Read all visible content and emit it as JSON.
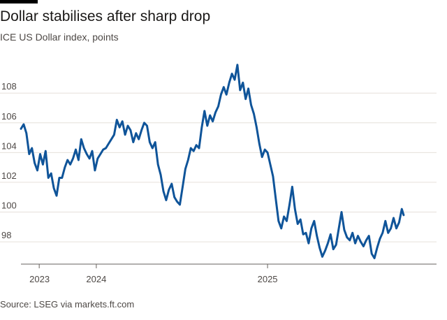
{
  "header": {
    "title": "Dollar stabilises after sharp drop",
    "subtitle": "ICE US Dollar index, points"
  },
  "footer": {
    "source": "Source: LSEG via markets.ft.com"
  },
  "colors": {
    "line": "#0f5499",
    "grid": "#e6e0da",
    "text": "#4d4845"
  },
  "chart_data": {
    "type": "line",
    "title": "Dollar stabilises after sharp drop",
    "subtitle": "ICE US Dollar index, points",
    "xlabel": "",
    "ylabel": "",
    "ylim": [
      96.5,
      110.5
    ],
    "yticks": [
      98,
      100,
      102,
      104,
      106,
      108
    ],
    "xlim": [
      2023.92,
      2025.74
    ],
    "xticks": [
      {
        "value": 2024.0,
        "label": "2023"
      },
      {
        "value": 2024.25,
        "label": "2024"
      },
      {
        "value": 2025.0,
        "label": "2025"
      }
    ],
    "grid": true,
    "legend": "none",
    "series": [
      {
        "name": "ICE US Dollar index",
        "points": [
          [
            2023.92,
            105.6
          ],
          [
            2023.932,
            105.9
          ],
          [
            2023.944,
            105.3
          ],
          [
            2023.956,
            103.9
          ],
          [
            2023.968,
            104.3
          ],
          [
            2023.98,
            103.3
          ],
          [
            2023.992,
            102.8
          ],
          [
            2024.004,
            103.9
          ],
          [
            2024.016,
            103.2
          ],
          [
            2024.028,
            104.1
          ],
          [
            2024.04,
            102.3
          ],
          [
            2024.052,
            102.6
          ],
          [
            2024.064,
            101.6
          ],
          [
            2024.076,
            101.1
          ],
          [
            2024.088,
            102.3
          ],
          [
            2024.1,
            102.3
          ],
          [
            2024.112,
            103.0
          ],
          [
            2024.124,
            103.5
          ],
          [
            2024.136,
            103.2
          ],
          [
            2024.148,
            103.6
          ],
          [
            2024.16,
            104.2
          ],
          [
            2024.172,
            103.5
          ],
          [
            2024.184,
            104.9
          ],
          [
            2024.196,
            104.3
          ],
          [
            2024.208,
            103.9
          ],
          [
            2024.22,
            103.6
          ],
          [
            2024.232,
            104.1
          ],
          [
            2024.244,
            102.8
          ],
          [
            2024.256,
            103.6
          ],
          [
            2024.268,
            103.9
          ],
          [
            2024.28,
            104.2
          ],
          [
            2024.292,
            104.3
          ],
          [
            2024.304,
            104.6
          ],
          [
            2024.316,
            104.9
          ],
          [
            2024.328,
            105.2
          ],
          [
            2024.34,
            106.2
          ],
          [
            2024.352,
            105.7
          ],
          [
            2024.364,
            106.1
          ],
          [
            2024.376,
            105.2
          ],
          [
            2024.388,
            105.8
          ],
          [
            2024.4,
            105.5
          ],
          [
            2024.412,
            104.7
          ],
          [
            2024.424,
            105.3
          ],
          [
            2024.436,
            104.9
          ],
          [
            2024.448,
            105.5
          ],
          [
            2024.46,
            106.0
          ],
          [
            2024.472,
            105.8
          ],
          [
            2024.484,
            104.7
          ],
          [
            2024.496,
            104.3
          ],
          [
            2024.508,
            104.7
          ],
          [
            2024.52,
            103.2
          ],
          [
            2024.532,
            102.5
          ],
          [
            2024.544,
            101.4
          ],
          [
            2024.556,
            100.8
          ],
          [
            2024.568,
            101.5
          ],
          [
            2024.58,
            101.9
          ],
          [
            2024.592,
            101.0
          ],
          [
            2024.604,
            100.7
          ],
          [
            2024.616,
            100.5
          ],
          [
            2024.628,
            101.7
          ],
          [
            2024.64,
            102.9
          ],
          [
            2024.652,
            103.5
          ],
          [
            2024.664,
            104.3
          ],
          [
            2024.676,
            104.1
          ],
          [
            2024.688,
            104.5
          ],
          [
            2024.7,
            104.3
          ],
          [
            2024.712,
            105.7
          ],
          [
            2024.724,
            106.8
          ],
          [
            2024.736,
            105.8
          ],
          [
            2024.748,
            106.5
          ],
          [
            2024.76,
            106.1
          ],
          [
            2024.772,
            106.7
          ],
          [
            2024.784,
            107.1
          ],
          [
            2024.796,
            107.9
          ],
          [
            2024.808,
            108.4
          ],
          [
            2024.82,
            107.9
          ],
          [
            2024.832,
            108.7
          ],
          [
            2024.844,
            109.3
          ],
          [
            2024.856,
            108.9
          ],
          [
            2024.868,
            109.9
          ],
          [
            2024.88,
            108.2
          ],
          [
            2024.892,
            108.7
          ],
          [
            2024.904,
            107.6
          ],
          [
            2024.916,
            108.3
          ],
          [
            2024.928,
            107.2
          ],
          [
            2024.94,
            106.6
          ],
          [
            2024.952,
            105.7
          ],
          [
            2024.964,
            104.6
          ],
          [
            2024.976,
            103.7
          ],
          [
            2024.988,
            104.2
          ],
          [
            2025.0,
            104.0
          ],
          [
            2025.012,
            103.2
          ],
          [
            2025.024,
            102.4
          ],
          [
            2025.036,
            100.9
          ],
          [
            2025.048,
            99.4
          ],
          [
            2025.06,
            98.9
          ],
          [
            2025.072,
            99.7
          ],
          [
            2025.084,
            99.4
          ],
          [
            2025.096,
            100.5
          ],
          [
            2025.108,
            101.7
          ],
          [
            2025.12,
            100.2
          ],
          [
            2025.132,
            99.2
          ],
          [
            2025.144,
            99.5
          ],
          [
            2025.156,
            98.5
          ],
          [
            2025.168,
            98.6
          ],
          [
            2025.18,
            97.9
          ],
          [
            2025.192,
            98.9
          ],
          [
            2025.204,
            99.4
          ],
          [
            2025.216,
            98.4
          ],
          [
            2025.228,
            97.6
          ],
          [
            2025.24,
            97.0
          ],
          [
            2025.252,
            97.4
          ],
          [
            2025.264,
            97.9
          ],
          [
            2025.276,
            98.5
          ],
          [
            2025.288,
            97.5
          ],
          [
            2025.3,
            97.8
          ],
          [
            2025.312,
            98.9
          ],
          [
            2025.324,
            100.0
          ],
          [
            2025.336,
            98.8
          ],
          [
            2025.348,
            98.3
          ],
          [
            2025.36,
            98.1
          ],
          [
            2025.372,
            98.6
          ],
          [
            2025.384,
            97.9
          ],
          [
            2025.396,
            98.4
          ],
          [
            2025.408,
            98.0
          ],
          [
            2025.42,
            97.7
          ],
          [
            2025.432,
            98.1
          ],
          [
            2025.444,
            98.4
          ],
          [
            2025.456,
            97.2
          ],
          [
            2025.468,
            96.9
          ],
          [
            2025.48,
            97.6
          ],
          [
            2025.492,
            98.2
          ],
          [
            2025.504,
            98.6
          ],
          [
            2025.516,
            99.4
          ],
          [
            2025.528,
            98.6
          ],
          [
            2025.54,
            98.9
          ],
          [
            2025.552,
            99.6
          ],
          [
            2025.564,
            98.9
          ],
          [
            2025.576,
            99.3
          ],
          [
            2025.588,
            100.2
          ],
          [
            2025.596,
            99.8
          ]
        ]
      }
    ],
    "source": "Source: LSEG via markets.ft.com"
  }
}
